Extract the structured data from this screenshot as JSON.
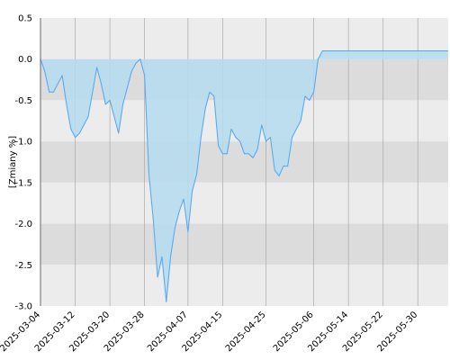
{
  "chart_data": {
    "type": "area",
    "title": "",
    "xlabel": "",
    "ylabel": "[Zmiany %]",
    "ylim": [
      -3.0,
      0.5
    ],
    "xlim": [
      "2025-03-04",
      "2025-06-06"
    ],
    "y_ticks": [
      "0.5",
      "0.0",
      "-0.5",
      "-1.0",
      "-1.5",
      "-2.0",
      "-2.5",
      "-3.0"
    ],
    "x_ticks": [
      "2025-03-04",
      "2025-03-12",
      "2025-03-20",
      "2025-03-28",
      "2025-04-07",
      "2025-04-15",
      "2025-04-25",
      "2025-05-06",
      "2025-05-14",
      "2025-05-22",
      "2025-05-30"
    ],
    "grid": true,
    "legend": "none",
    "colors": {
      "line": "#5aaaf0",
      "fill": "#b4dcf0",
      "band_light": "#ececec",
      "band_dark": "#dcdcdc",
      "grid_vertical": "#aaaaaa"
    },
    "series": [
      {
        "x": [
          "2025-03-04",
          "2025-03-05",
          "2025-03-06",
          "2025-03-07",
          "2025-03-08",
          "2025-03-09",
          "2025-03-10",
          "2025-03-11",
          "2025-03-12",
          "2025-03-13",
          "2025-03-14",
          "2025-03-15",
          "2025-03-16",
          "2025-03-17",
          "2025-03-18",
          "2025-03-19",
          "2025-03-20",
          "2025-03-21",
          "2025-03-22",
          "2025-03-23",
          "2025-03-24",
          "2025-03-25",
          "2025-03-26",
          "2025-03-27",
          "2025-03-28",
          "2025-03-29",
          "2025-03-30",
          "2025-03-31",
          "2025-04-01",
          "2025-04-02",
          "2025-04-03",
          "2025-04-04",
          "2025-04-05",
          "2025-04-06",
          "2025-04-07",
          "2025-04-08",
          "2025-04-09",
          "2025-04-10",
          "2025-04-11",
          "2025-04-12",
          "2025-04-13",
          "2025-04-14",
          "2025-04-15",
          "2025-04-16",
          "2025-04-17",
          "2025-04-18",
          "2025-04-19",
          "2025-04-20",
          "2025-04-21",
          "2025-04-22",
          "2025-04-23",
          "2025-04-24",
          "2025-04-25",
          "2025-04-26",
          "2025-04-27",
          "2025-04-28",
          "2025-04-29",
          "2025-04-30",
          "2025-05-01",
          "2025-05-02",
          "2025-05-03",
          "2025-05-04",
          "2025-05-05",
          "2025-05-06",
          "2025-05-07",
          "2025-05-08",
          "2025-05-09",
          "2025-05-10",
          "2025-05-11",
          "2025-05-12",
          "2025-05-13",
          "2025-05-14",
          "2025-05-15",
          "2025-05-16",
          "2025-05-17",
          "2025-05-18",
          "2025-05-19",
          "2025-05-20",
          "2025-05-21",
          "2025-05-22",
          "2025-05-23",
          "2025-05-24",
          "2025-05-25",
          "2025-05-26",
          "2025-05-27",
          "2025-05-28",
          "2025-05-29",
          "2025-05-30",
          "2025-05-31",
          "2025-06-01",
          "2025-06-02",
          "2025-06-03",
          "2025-06-04",
          "2025-06-05",
          "2025-06-06"
        ],
        "y": [
          0.0,
          -0.15,
          -0.4,
          -0.4,
          -0.3,
          -0.2,
          -0.55,
          -0.85,
          -0.95,
          -0.9,
          -0.8,
          -0.7,
          -0.4,
          -0.1,
          -0.3,
          -0.55,
          -0.5,
          -0.7,
          -0.9,
          -0.55,
          -0.35,
          -0.15,
          -0.05,
          0.0,
          -0.2,
          -1.4,
          -1.95,
          -2.65,
          -2.4,
          -2.95,
          -2.4,
          -2.05,
          -1.85,
          -1.7,
          -2.1,
          -1.6,
          -1.4,
          -0.95,
          -0.6,
          -0.4,
          -0.45,
          -1.05,
          -1.15,
          -1.15,
          -0.85,
          -0.95,
          -1.0,
          -1.15,
          -1.15,
          -1.2,
          -1.1,
          -0.8,
          -1.0,
          -0.95,
          -1.35,
          -1.42,
          -1.3,
          -1.3,
          -0.95,
          -0.85,
          -0.75,
          -0.45,
          -0.5,
          -0.4,
          0.0,
          0.1,
          0.1,
          0.1,
          0.1,
          0.1,
          0.1,
          0.1,
          0.1,
          0.1,
          0.1,
          0.1,
          0.1,
          0.1,
          0.1,
          0.1,
          0.1,
          0.1,
          0.1,
          0.1,
          0.1,
          0.1,
          0.1,
          0.1,
          0.1,
          0.1,
          0.1,
          0.1,
          0.1,
          0.1,
          0.1
        ]
      }
    ]
  }
}
